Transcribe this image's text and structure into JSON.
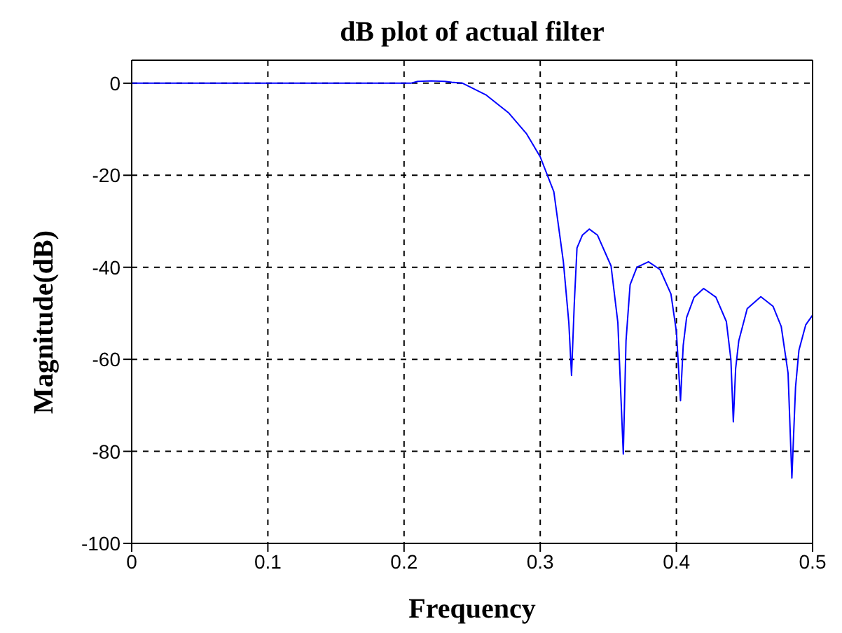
{
  "chart_data": {
    "type": "line",
    "title": "dB plot of actual filter",
    "xlabel": "Frequency",
    "ylabel": "Magnitude(dB)",
    "x": [
      0,
      0.1,
      0.2,
      0.205,
      0.21,
      0.22,
      0.23,
      0.235,
      0.243,
      0.26,
      0.277,
      0.29,
      0.3,
      0.31,
      0.317,
      0.321,
      0.323,
      0.325,
      0.327,
      0.331,
      0.336,
      0.342,
      0.352,
      0.357,
      0.361,
      0.363,
      0.366,
      0.371,
      0.3795,
      0.388,
      0.396,
      0.4,
      0.403,
      0.405,
      0.4075,
      0.413,
      0.42,
      0.429,
      0.4367,
      0.44,
      0.4418,
      0.4435,
      0.4458,
      0.452,
      0.462,
      0.471,
      0.477,
      0.482,
      0.4848,
      0.4875,
      0.49,
      0.495,
      0.5
    ],
    "series": [
      {
        "color": "#0000ff",
        "values": [
          0,
          0,
          0,
          0,
          0.4,
          0.5,
          0.4,
          0.2,
          0,
          -2.5,
          -6.5,
          -11,
          -16,
          -23.6,
          -38.8,
          -52,
          -63.5,
          -48,
          -35.8,
          -33,
          -31.7,
          -33,
          -39.7,
          -52,
          -80.6,
          -56,
          -43.8,
          -40,
          -38.8,
          -40.5,
          -45.8,
          -54,
          -69,
          -57,
          -50.9,
          -46.5,
          -44.6,
          -46.5,
          -51.8,
          -60,
          -73.6,
          -62,
          -56,
          -49,
          -46.4,
          -48.5,
          -52.9,
          -63,
          -85.8,
          -66,
          -58,
          -52.5,
          -50.4
        ]
      }
    ],
    "xlim": [
      0,
      0.5
    ],
    "xticks": [
      0,
      0.1,
      0.2,
      0.3,
      0.4,
      0.5
    ],
    "ylim": [
      -100,
      5
    ],
    "yticks": [
      -100,
      -80,
      -60,
      -40,
      -20,
      0
    ],
    "grid": true,
    "marker": "none",
    "line_style": "solid"
  }
}
